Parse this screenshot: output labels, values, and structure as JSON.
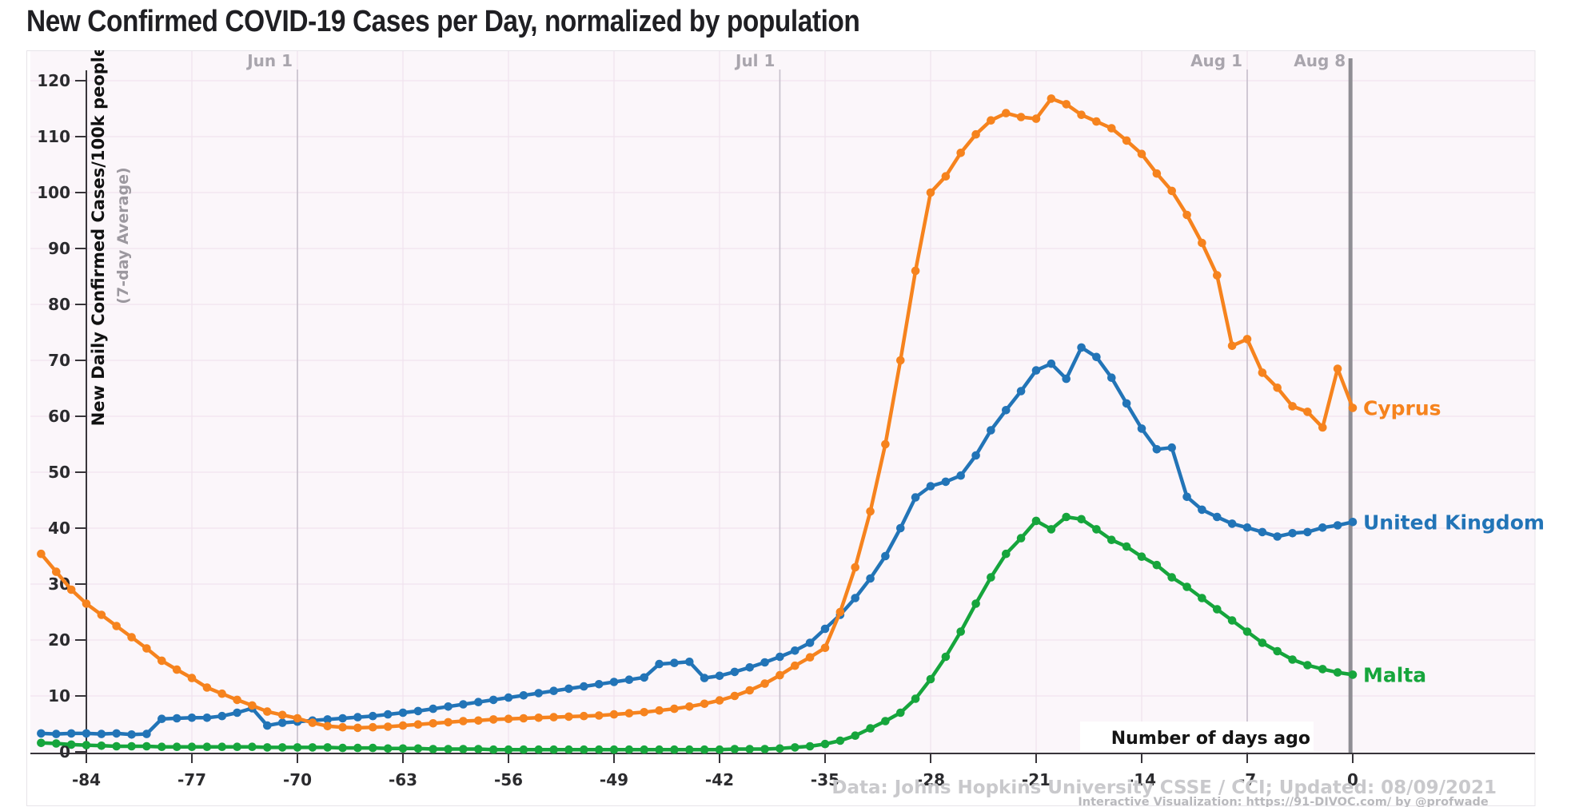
{
  "page": {
    "title": "New Confirmed COVID-19 Cases per Day, normalized by population"
  },
  "footer": {
    "line1": "Data: Johns Hopkins University CSSE / CCI; Updated: 08/09/2021",
    "line2": "Interactive Visualization: https://91-DIVOC.com/ by @profwade_"
  },
  "chart_data": {
    "type": "line",
    "title": "New Confirmed COVID-19 Cases per Day, normalized by population",
    "ylabel": "New Daily Confirmed Cases/100k people",
    "ylabel_sub": "(7-day Average)",
    "xlabel": "Number of days ago",
    "grid": true,
    "legend_position": "right-of-line-end",
    "ylim": [
      0,
      123
    ],
    "xlim": [
      -87.6,
      12.1
    ],
    "x_start_day": -87,
    "x_ticks": [
      -84,
      -77,
      -70,
      -63,
      -56,
      -49,
      -42,
      -35,
      -28,
      -21,
      -14,
      -7,
      0
    ],
    "y_ticks": [
      0,
      10,
      20,
      30,
      40,
      50,
      60,
      70,
      80,
      90,
      100,
      110,
      120
    ],
    "date_markers": [
      {
        "label": "Jun 1",
        "day": -70,
        "today_bar": false
      },
      {
        "label": "Jul 1",
        "day": -38,
        "today_bar": false
      },
      {
        "label": "Aug 1",
        "day": -7,
        "today_bar": false
      },
      {
        "label": "Aug 8",
        "day": -0.15,
        "today_bar": true
      }
    ],
    "series": [
      {
        "name": "United Kingdom",
        "color": "#2274B7",
        "values": [
          3.3,
          3.2,
          3.3,
          3.3,
          3.2,
          3.3,
          3.1,
          3.2,
          5.9,
          6.0,
          6.1,
          6.1,
          6.4,
          7.0,
          7.8,
          4.7,
          5.2,
          5.4,
          5.6,
          5.8,
          6.0,
          6.2,
          6.4,
          6.7,
          7.0,
          7.3,
          7.7,
          8.1,
          8.5,
          8.9,
          9.3,
          9.7,
          10.1,
          10.5,
          10.9,
          11.3,
          11.7,
          12.1,
          12.5,
          12.9,
          13.3,
          15.7,
          15.9,
          16.1,
          13.2,
          13.6,
          14.3,
          15.1,
          16.0,
          17.0,
          18.1,
          19.5,
          22.0,
          24.5,
          27.5,
          31.0,
          35.0,
          40.0,
          45.5,
          47.5,
          48.3,
          49.4,
          53.0,
          57.5,
          61.1,
          64.5,
          68.2,
          69.4,
          66.7,
          72.3,
          70.6,
          66.9,
          62.3,
          57.8,
          54.1,
          54.4,
          45.6,
          43.3,
          42.0,
          40.8,
          40.1,
          39.3,
          38.5,
          39.1,
          39.3,
          40.1,
          40.5,
          41.1
        ]
      },
      {
        "name": "Cyprus",
        "color": "#F6831E",
        "values": [
          35.4,
          32.2,
          29.0,
          26.5,
          24.5,
          22.5,
          20.5,
          18.5,
          16.3,
          14.7,
          13.2,
          11.5,
          10.4,
          9.3,
          8.3,
          7.2,
          6.6,
          6.0,
          5.2,
          4.6,
          4.4,
          4.3,
          4.4,
          4.5,
          4.7,
          4.9,
          5.1,
          5.3,
          5.5,
          5.6,
          5.8,
          5.9,
          6.0,
          6.1,
          6.2,
          6.3,
          6.4,
          6.5,
          6.7,
          6.9,
          7.1,
          7.4,
          7.7,
          8.1,
          8.6,
          9.2,
          10.0,
          11.0,
          12.2,
          13.7,
          15.4,
          16.9,
          18.6,
          25.0,
          33.0,
          43.0,
          55.0,
          70.0,
          86.0,
          100.0,
          102.9,
          107.1,
          110.4,
          112.9,
          114.2,
          113.5,
          113.2,
          116.8,
          115.8,
          113.9,
          112.7,
          111.5,
          109.3,
          106.9,
          103.4,
          100.3,
          96.0,
          91.0,
          85.2,
          72.6,
          73.8,
          67.8,
          65.1,
          61.8,
          60.8,
          58.0,
          68.5,
          61.5
        ]
      },
      {
        "name": "Malta",
        "color": "#16A53C",
        "values": [
          1.6,
          1.5,
          1.3,
          1.2,
          1.1,
          1.0,
          1.0,
          1.0,
          0.9,
          0.9,
          0.9,
          0.9,
          0.9,
          0.9,
          0.9,
          0.8,
          0.8,
          0.8,
          0.8,
          0.8,
          0.7,
          0.7,
          0.7,
          0.6,
          0.6,
          0.6,
          0.5,
          0.5,
          0.5,
          0.5,
          0.4,
          0.4,
          0.4,
          0.4,
          0.4,
          0.4,
          0.4,
          0.4,
          0.4,
          0.4,
          0.4,
          0.4,
          0.4,
          0.4,
          0.4,
          0.4,
          0.5,
          0.5,
          0.5,
          0.6,
          0.8,
          1.0,
          1.4,
          2.0,
          2.9,
          4.2,
          5.5,
          7.0,
          9.5,
          13.0,
          17.0,
          21.5,
          26.5,
          31.2,
          35.4,
          38.2,
          41.3,
          39.8,
          42.0,
          41.6,
          39.8,
          37.9,
          36.7,
          34.9,
          33.4,
          31.2,
          29.5,
          27.5,
          25.5,
          23.5,
          21.5,
          19.5,
          18.0,
          16.5,
          15.5,
          14.8,
          14.2,
          13.8
        ]
      }
    ],
    "colors": {
      "plot_bg": "#FBF6FA",
      "grid": "#F1E3EF",
      "axis": "#38353A",
      "tick_text": "#2B2B2E",
      "date_line": "#C6BFCB",
      "date_text": "#A9A5AD",
      "today_bar": "#8F8E94",
      "footer1": "#C9C9CC",
      "footer2": "#B9B9BD",
      "border": "#E7E4E9"
    }
  }
}
